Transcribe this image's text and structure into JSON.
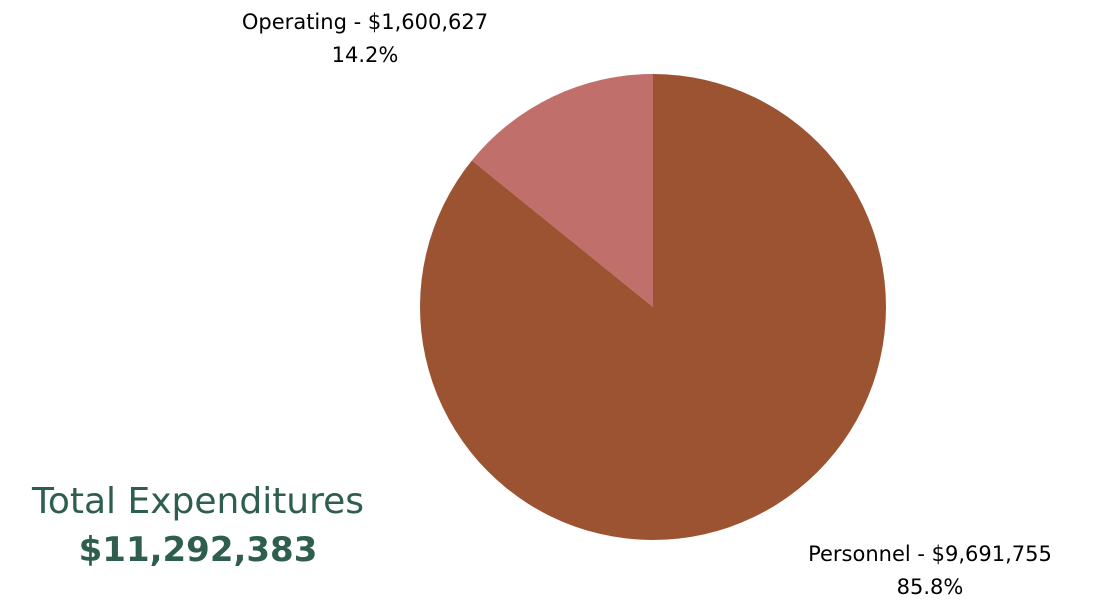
{
  "chart_data": {
    "type": "pie",
    "slices": [
      {
        "name": "Operating",
        "amount": "$1,600,627",
        "percent_label": "14.2%",
        "value": 1600627,
        "color": "#c16f6a"
      },
      {
        "name": "Personnel",
        "amount": "$9,691,755",
        "percent_label": "85.8%",
        "value": 9691755,
        "color": "#9c5331"
      }
    ],
    "start_angle_deg": 0,
    "direction": "counterclockwise"
  },
  "summary": {
    "title": "Total Expenditures",
    "total": "$11,292,383"
  },
  "colors": {
    "summary_text": "#2e5e4e",
    "label_text": "#000000"
  }
}
